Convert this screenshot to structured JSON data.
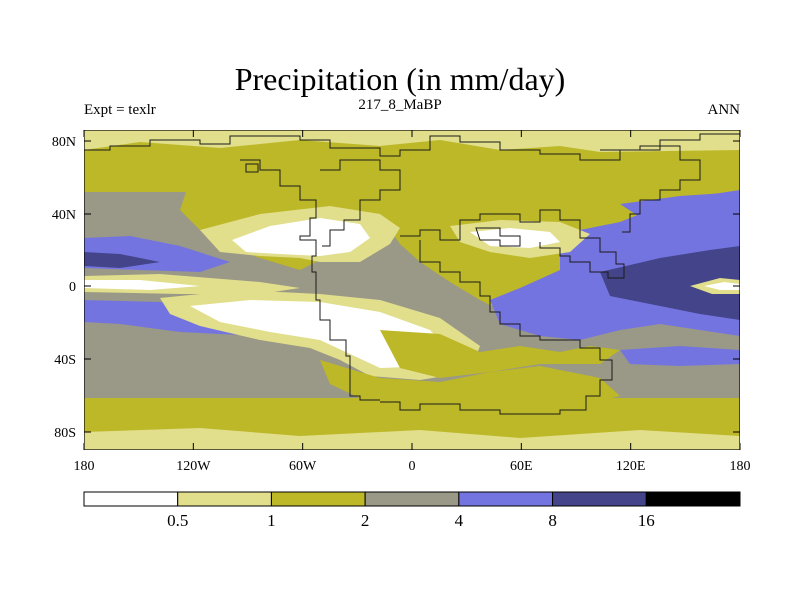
{
  "title": "Precipitation (in mm/day)",
  "left_string": "Expt = texlr",
  "center_string": "217_8_MaBP",
  "right_string": "ANN",
  "axes": {
    "lat_ticks": [
      "80N",
      "40N",
      "0",
      "40S",
      "80S"
    ],
    "lon_ticks": [
      "180",
      "120W",
      "60W",
      "0",
      "60E",
      "120E",
      "180"
    ]
  },
  "colorbar": {
    "levels": [
      "0.5",
      "1",
      "2",
      "4",
      "8",
      "16"
    ],
    "colors": [
      "#ffffff",
      "#e1de8c",
      "#bdb828",
      "#9a9886",
      "#7474e0",
      "#44448a",
      "#000000"
    ]
  },
  "colors": {
    "ocean_base": "#9a9886",
    "coast": "#1a1a1a"
  }
}
